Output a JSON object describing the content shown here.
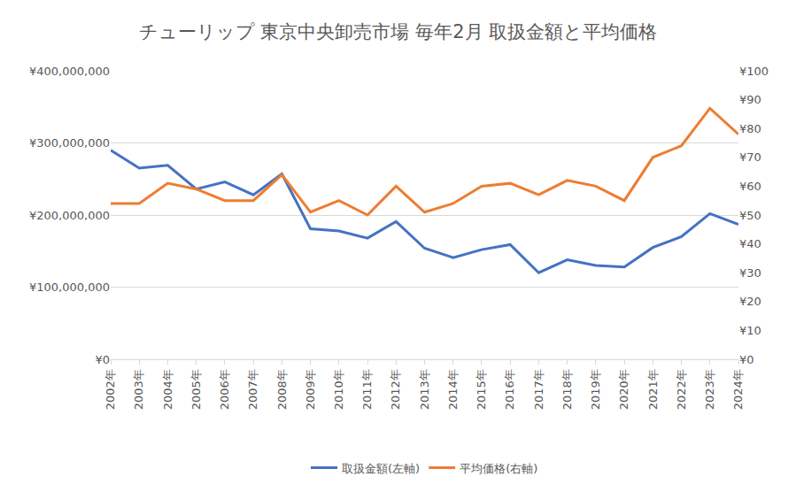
{
  "chart_data": {
    "type": "line",
    "title": "チューリップ 東京中央卸売市場 毎年2月 取扱金額と平均価格",
    "categories": [
      "2002年",
      "2003年",
      "2004年",
      "2005年",
      "2006年",
      "2007年",
      "2008年",
      "2009年",
      "2010年",
      "2011年",
      "2012年",
      "2013年",
      "2014年",
      "2015年",
      "2016年",
      "2017年",
      "2018年",
      "2019年",
      "2020年",
      "2021年",
      "2022年",
      "2023年",
      "2024年"
    ],
    "series": [
      {
        "name": "取扱金額(左軸)",
        "color": "#4472c4",
        "axis": "y",
        "values": [
          290000000,
          265000000,
          269000000,
          236000000,
          246000000,
          228000000,
          257000000,
          181000000,
          178000000,
          168000000,
          191000000,
          154000000,
          141000000,
          152000000,
          159000000,
          120000000,
          138000000,
          130000000,
          128000000,
          155000000,
          170000000,
          202000000,
          187000000
        ]
      },
      {
        "name": "平均価格(右軸)",
        "color": "#ed7d31",
        "axis": "y2",
        "values": [
          54,
          54,
          61,
          59,
          55,
          55,
          64,
          51,
          55,
          50,
          60,
          51,
          54,
          60,
          61,
          57,
          62,
          60,
          55,
          70,
          74,
          87,
          78
        ]
      }
    ],
    "ylim": [
      0,
      400000000
    ],
    "yticks": [
      {
        "value": 0,
        "label": "¥0"
      },
      {
        "value": 100000000,
        "label": "¥100,000,000"
      },
      {
        "value": 200000000,
        "label": "¥200,000,000"
      },
      {
        "value": 300000000,
        "label": "¥300,000,000"
      },
      {
        "value": 400000000,
        "label": "¥400,000,000"
      }
    ],
    "y2lim": [
      0,
      100
    ],
    "y2ticks": [
      {
        "value": 0,
        "label": "¥0"
      },
      {
        "value": 10,
        "label": "¥10"
      },
      {
        "value": 20,
        "label": "¥20"
      },
      {
        "value": 30,
        "label": "¥30"
      },
      {
        "value": 40,
        "label": "¥40"
      },
      {
        "value": 50,
        "label": "¥50"
      },
      {
        "value": 60,
        "label": "¥60"
      },
      {
        "value": 70,
        "label": "¥70"
      },
      {
        "value": 80,
        "label": "¥80"
      },
      {
        "value": 90,
        "label": "¥90"
      },
      {
        "value": 100,
        "label": "¥100"
      }
    ],
    "grid": true,
    "legend": "bottom"
  }
}
